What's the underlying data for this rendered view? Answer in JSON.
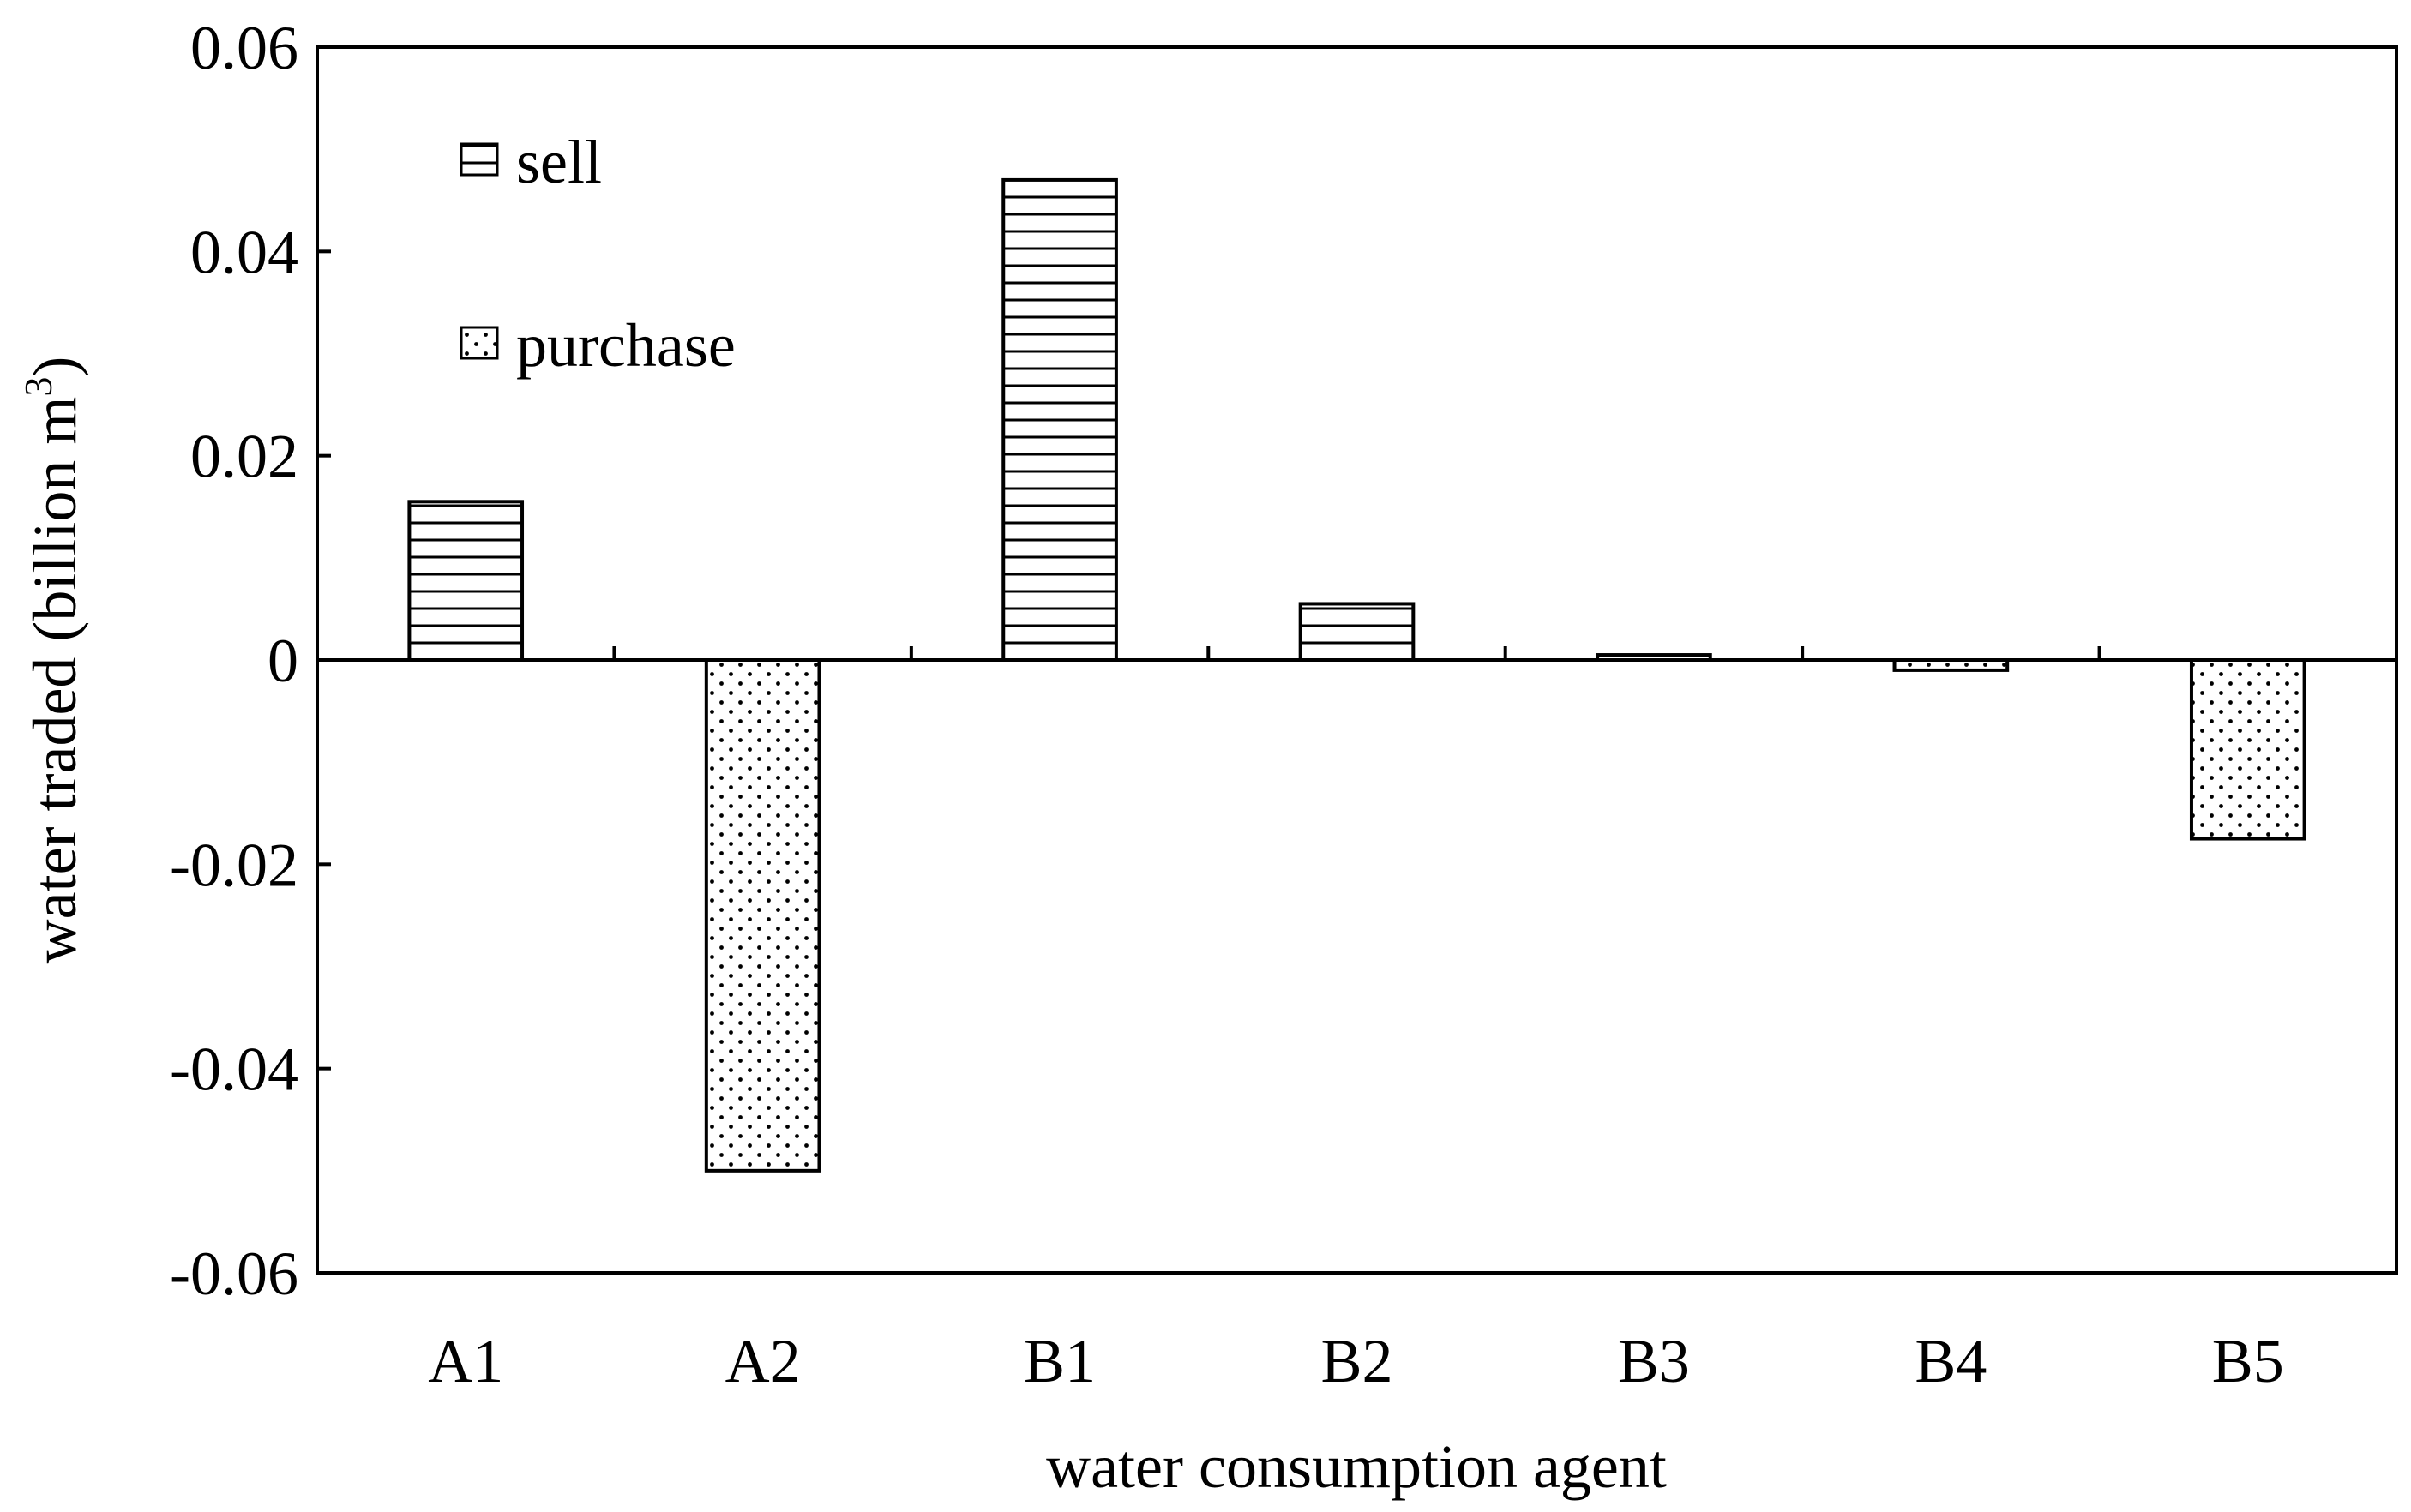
{
  "chart_data": {
    "type": "bar",
    "title": "",
    "xlabel": "water consumption agent",
    "ylabel": "water traded (billion m",
    "ylabel_superscript": "3",
    "ylabel_close": ")",
    "categories": [
      "A1",
      "A2",
      "B1",
      "B2",
      "B3",
      "B4",
      "B5"
    ],
    "series": [
      {
        "name": "sell",
        "pattern": "horizontal-lines",
        "values": [
          0.0155,
          0,
          0.047,
          0.0055,
          0.0005,
          0,
          0
        ]
      },
      {
        "name": "purchase",
        "pattern": "dots",
        "values": [
          0,
          -0.05,
          0,
          0,
          0,
          -0.001,
          -0.0175
        ]
      }
    ],
    "ylim": [
      -0.06,
      0.06
    ],
    "yticks": [
      -0.06,
      -0.04,
      -0.02,
      0,
      0.02,
      0.04,
      0.06
    ],
    "ytick_labels": [
      "-0.06",
      "-0.04",
      "-0.02",
      "0",
      "0.02",
      "0.04",
      "0.06"
    ],
    "grid": false,
    "legend_position": "top-left",
    "colors": {
      "stroke": "#000000",
      "fill": "#ffffff"
    }
  }
}
